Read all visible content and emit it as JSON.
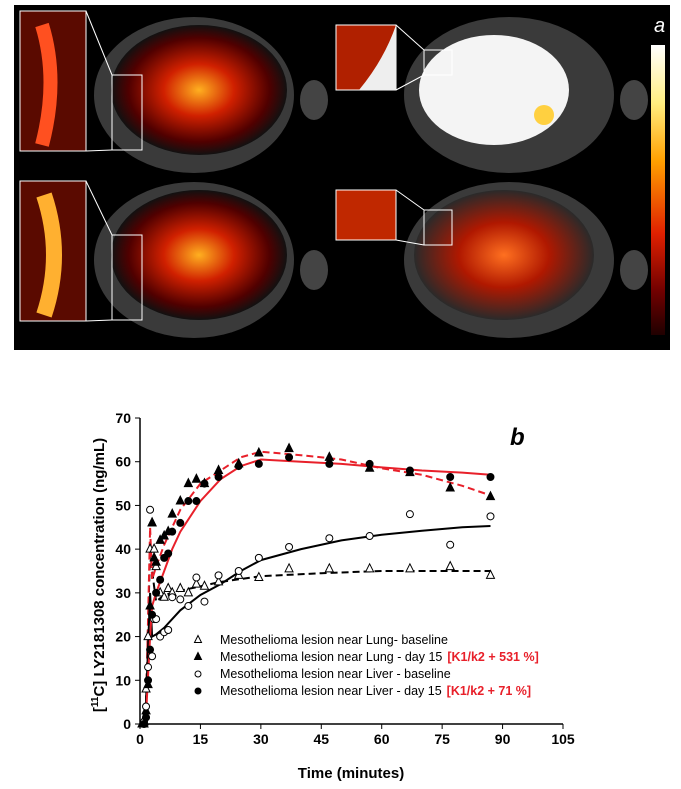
{
  "panel_a": {
    "label": "a"
  },
  "chart_data": {
    "type": "scatter",
    "panel_label": "b",
    "xlabel": "Time (minutes)",
    "ylabel_prefix": "[",
    "ylabel_sup": "11",
    "ylabel_rest": "C] LY2181308 concentration (ng/mL)",
    "xlim": [
      0,
      105
    ],
    "ylim": [
      0,
      70
    ],
    "xticks": [
      0,
      15,
      30,
      45,
      60,
      75,
      90,
      105
    ],
    "yticks": [
      0,
      10,
      20,
      30,
      40,
      50,
      60,
      70
    ],
    "grid": false,
    "legend_position": "bottom-center",
    "series": [
      {
        "name": "Mesothelioma lesion near Lung- baseline",
        "annotation": "",
        "marker": "open-triangle",
        "fit_style": "dashed",
        "fit_color": "#000000",
        "x": [
          1,
          1.5,
          2,
          2.5,
          3,
          3.5,
          4,
          5,
          6,
          7,
          8,
          10,
          12,
          14,
          16,
          19.5,
          24.5,
          29.5,
          37,
          47,
          57,
          67,
          77,
          87
        ],
        "y": [
          0,
          8,
          20,
          40,
          46,
          40,
          36,
          30,
          29,
          31,
          30,
          31,
          30,
          32,
          31.5,
          32.5,
          34,
          33.5,
          35.5,
          35.5,
          35.5,
          35.5,
          36,
          34
        ],
        "fit_x": [
          0.5,
          1.5,
          2.5,
          3,
          4,
          6,
          10,
          15,
          20,
          30,
          45,
          60,
          75,
          87
        ],
        "fit_y": [
          0,
          5,
          40,
          35,
          28,
          29.5,
          30.5,
          31.5,
          32.5,
          33.8,
          34.5,
          35,
          35,
          35
        ]
      },
      {
        "name": "Mesothelioma lesion near Lung - day 15",
        "annotation": "[K1/k2 + 531 %]",
        "marker": "filled-triangle",
        "fit_style": "dashed",
        "fit_color": "#e8202a",
        "x": [
          0.5,
          1,
          1.5,
          2,
          2.5,
          3,
          3.5,
          4,
          5,
          6,
          7,
          8,
          10,
          12,
          14,
          16,
          19.5,
          24.5,
          29.5,
          37,
          47,
          57,
          67,
          77,
          87
        ],
        "y": [
          0,
          0.5,
          3,
          9,
          27,
          46,
          38,
          37,
          42,
          43,
          44,
          48,
          51,
          55,
          56,
          55,
          58,
          59.5,
          62,
          63,
          61,
          58.5,
          57.5,
          54,
          52
        ],
        "fit_x": [
          0.5,
          1.5,
          2.5,
          3,
          4,
          6,
          8,
          10,
          15,
          20,
          25,
          30,
          40,
          50,
          60,
          70,
          80,
          87
        ],
        "fit_y": [
          0,
          3,
          45,
          33,
          36,
          41,
          45,
          49,
          55,
          58,
          61,
          62.3,
          61.5,
          60.5,
          58.5,
          57,
          54.5,
          52.3
        ]
      },
      {
        "name": "Mesothelioma lesion near Liver - baseline",
        "annotation": "",
        "marker": "open-circle",
        "fit_style": "solid",
        "fit_color": "#000000",
        "x": [
          1,
          1.5,
          2,
          2.5,
          3,
          3.5,
          4,
          5,
          6,
          7,
          8,
          10,
          12,
          14,
          16,
          19.5,
          24.5,
          29.5,
          37,
          47,
          57,
          67,
          77,
          87
        ],
        "y": [
          0.5,
          4,
          13,
          49,
          15.5,
          24,
          24,
          20,
          21,
          21.5,
          29,
          28.5,
          27,
          33.5,
          28,
          34,
          35,
          38,
          40.5,
          42.5,
          43,
          48,
          41,
          47.5
        ],
        "fit_x": [
          0.5,
          1.5,
          2.5,
          3,
          4,
          6,
          8,
          10,
          15,
          20,
          25,
          30,
          40,
          50,
          60,
          70,
          80,
          87
        ],
        "fit_y": [
          0,
          5,
          30,
          20,
          20.5,
          22,
          24,
          26,
          29.5,
          32,
          35,
          37.5,
          40,
          42,
          43.3,
          44.2,
          45,
          45.3
        ]
      },
      {
        "name": "Mesothelioma lesion near Liver - day 15",
        "annotation": "[K1/k2 + 71 %]",
        "marker": "filled-circle",
        "fit_style": "solid",
        "fit_color": "#e8202a",
        "x": [
          1,
          1.5,
          2,
          2.5,
          3,
          4,
          5,
          6,
          7,
          8,
          10,
          12,
          14,
          16,
          19.5,
          24.5,
          29.5,
          37,
          47,
          57,
          67,
          77,
          87
        ],
        "y": [
          0,
          1.5,
          10,
          17,
          25,
          30,
          33,
          38,
          39,
          44,
          46,
          51,
          51,
          55,
          56.5,
          59,
          59.5,
          61,
          59.5,
          59.5,
          58,
          56.5,
          56.5
        ],
        "fit_x": [
          0.5,
          1.5,
          2.5,
          3,
          4,
          6,
          8,
          10,
          15,
          20,
          25,
          30,
          40,
          50,
          60,
          70,
          80,
          87
        ],
        "fit_y": [
          0,
          2,
          20,
          27,
          30,
          35,
          40,
          44,
          51,
          56,
          59,
          60.5,
          60,
          59.5,
          58.7,
          58,
          57.5,
          57
        ]
      }
    ]
  }
}
